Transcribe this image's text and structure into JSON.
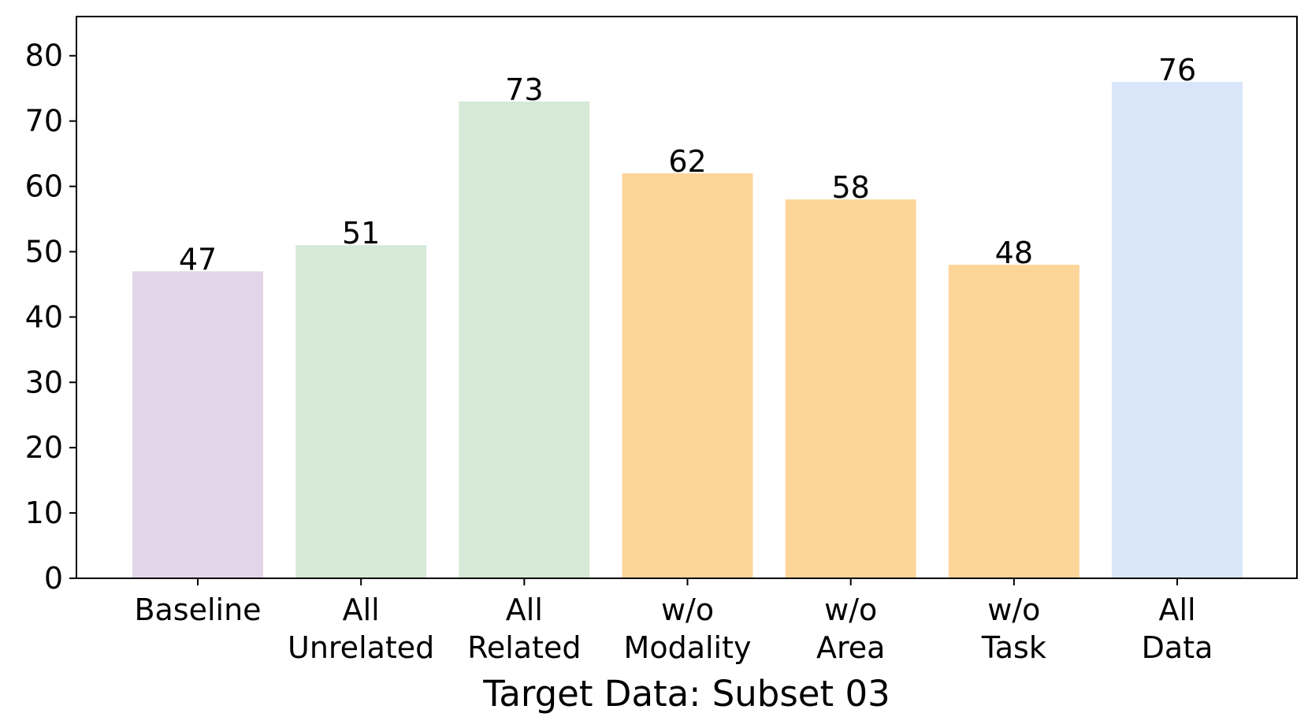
{
  "chart_data": {
    "type": "bar",
    "title": "",
    "xlabel": "Target Data: Subset 03",
    "ylabel": "",
    "categories": [
      [
        "Baseline"
      ],
      [
        "All",
        "Unrelated"
      ],
      [
        "All",
        "Related"
      ],
      [
        "w/o",
        "Modality"
      ],
      [
        "w/o",
        "Area"
      ],
      [
        "w/o",
        "Task"
      ],
      [
        "All",
        "Data"
      ]
    ],
    "values": [
      47,
      51,
      73,
      62,
      58,
      48,
      76
    ],
    "bar_colors": [
      "#e2d5e9",
      "#d6e9d6",
      "#d6e9d6",
      "#fed599",
      "#fed599",
      "#fed599",
      "#d9e6f9"
    ],
    "data_labels": [
      "47",
      "51",
      "73",
      "62",
      "58",
      "48",
      "76"
    ],
    "ylim": [
      0,
      86
    ],
    "yticks": [
      0,
      10,
      20,
      30,
      40,
      50,
      60,
      70,
      80
    ],
    "grid": false,
    "legend": "none"
  }
}
